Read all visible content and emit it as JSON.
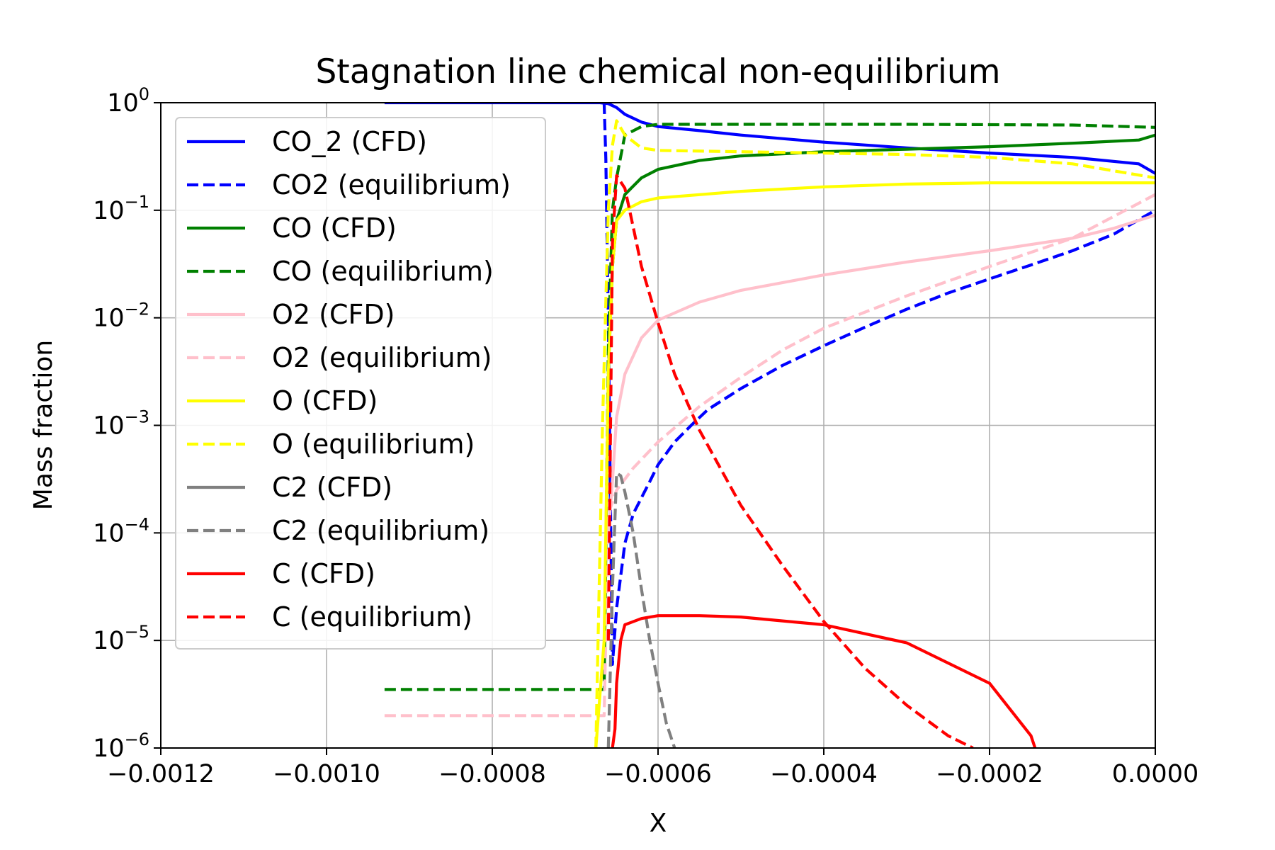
{
  "chart_data": {
    "type": "line",
    "title": "Stagnation line chemical non-equilibrium",
    "xlabel": "X",
    "ylabel": "Mass fraction",
    "xlim": [
      -0.0012,
      0.0
    ],
    "ylim": [
      1e-06,
      1.0
    ],
    "yscale": "log",
    "grid": true,
    "legend_position": "upper-left",
    "x_tick_labels": [
      "−0.0012",
      "−0.0010",
      "−0.0008",
      "−0.0006",
      "−0.0004",
      "−0.0002",
      "0.0000"
    ],
    "x_tick_values": [
      -0.0012,
      -0.001,
      -0.0008,
      -0.0006,
      -0.0004,
      -0.0002,
      0.0
    ],
    "y_ticks": [
      {
        "value": 1,
        "base": "10",
        "exp": "0"
      },
      {
        "value": 0.1,
        "base": "10",
        "exp": "−1"
      },
      {
        "value": 0.01,
        "base": "10",
        "exp": "−2"
      },
      {
        "value": 0.001,
        "base": "10",
        "exp": "−3"
      },
      {
        "value": 0.0001,
        "base": "10",
        "exp": "−4"
      },
      {
        "value": 1e-05,
        "base": "10",
        "exp": "−5"
      },
      {
        "value": 1e-06,
        "base": "10",
        "exp": "−6"
      }
    ],
    "series": [
      {
        "name": "CO_2 (CFD)",
        "color": "#0000ff",
        "dashed": false,
        "x": [
          -0.00093,
          -0.00067,
          -0.00066,
          -0.00065,
          -0.00064,
          -0.00062,
          -0.0006,
          -0.00055,
          -0.0005,
          -0.0004,
          -0.0003,
          -0.0002,
          -0.0001,
          -2e-05,
          0.0
        ],
        "y": [
          1.0,
          1.0,
          0.98,
          0.9,
          0.78,
          0.66,
          0.6,
          0.55,
          0.5,
          0.43,
          0.38,
          0.34,
          0.31,
          0.27,
          0.22
        ]
      },
      {
        "name": "CO2 (equilibrium)",
        "color": "#0000ff",
        "dashed": true,
        "x": [
          -0.000665,
          -0.000663,
          -0.00066,
          -0.000657,
          -0.000655,
          -0.00065,
          -0.00064,
          -0.00063,
          -0.00061,
          -0.0006,
          -0.00058,
          -0.00056,
          -0.00054,
          -0.0005,
          -0.00045,
          -0.0004,
          -0.00035,
          -0.0003,
          -0.00025,
          -0.0002,
          -0.00015,
          -0.0001,
          -5e-05,
          0.0
        ],
        "y": [
          1.0,
          0.3,
          0.01,
          0.0001,
          6e-06,
          2e-05,
          8e-05,
          0.00015,
          0.0003,
          0.00043,
          0.0007,
          0.001,
          0.0014,
          0.0022,
          0.0036,
          0.0055,
          0.0082,
          0.012,
          0.017,
          0.023,
          0.031,
          0.042,
          0.06,
          0.1
        ]
      },
      {
        "name": "CO (CFD)",
        "color": "#008000",
        "dashed": false,
        "x": [
          -0.00066,
          -0.000655,
          -0.00065,
          -0.00064,
          -0.00062,
          -0.0006,
          -0.00055,
          -0.0005,
          -0.0004,
          -0.0003,
          -0.0002,
          -0.0001,
          -2e-05,
          0.0
        ],
        "y": [
          0.003,
          0.03,
          0.08,
          0.14,
          0.2,
          0.24,
          0.29,
          0.32,
          0.35,
          0.37,
          0.39,
          0.42,
          0.45,
          0.5
        ]
      },
      {
        "name": "CO (equilibrium)",
        "color": "#008000",
        "dashed": true,
        "x": [
          -0.00093,
          -0.000675,
          -0.000665,
          -0.00066,
          -0.000655,
          -0.00065,
          -0.00064,
          -0.00062,
          -0.0006,
          -0.0005,
          -0.0003,
          -0.0001,
          0.0
        ],
        "y": [
          3.5e-06,
          3.5e-06,
          3.5e-06,
          0.005,
          0.1,
          0.2,
          0.5,
          0.6,
          0.63,
          0.63,
          0.63,
          0.62,
          0.59
        ]
      },
      {
        "name": "O2 (CFD)",
        "color": "#ffc0cb",
        "dashed": false,
        "x": [
          -0.00066,
          -0.000655,
          -0.00065,
          -0.00064,
          -0.00062,
          -0.0006,
          -0.00055,
          -0.0005,
          -0.0004,
          -0.0003,
          -0.0002,
          -0.0001,
          -5e-05,
          0.0
        ],
        "y": [
          0.0001,
          0.0003,
          0.0012,
          0.003,
          0.0065,
          0.0095,
          0.014,
          0.018,
          0.025,
          0.033,
          0.042,
          0.055,
          0.068,
          0.09
        ]
      },
      {
        "name": "O2 (equilibrium)",
        "color": "#ffc0cb",
        "dashed": true,
        "x": [
          -0.00093,
          -0.000675,
          -0.000665,
          -0.00066,
          -0.00065,
          -0.00063,
          -0.0006,
          -0.00055,
          -0.0005,
          -0.00045,
          -0.0004,
          -0.0003,
          -0.0002,
          -0.0001,
          0.0
        ],
        "y": [
          2e-06,
          2e-06,
          2e-06,
          0.00015,
          0.00025,
          0.0004,
          0.0007,
          0.0015,
          0.0028,
          0.005,
          0.008,
          0.016,
          0.03,
          0.055,
          0.14
        ]
      },
      {
        "name": "O (CFD)",
        "color": "#ffff00",
        "dashed": false,
        "x": [
          -0.000675,
          -0.000665,
          -0.00066,
          -0.000655,
          -0.00065,
          -0.00064,
          -0.00062,
          -0.0006,
          -0.0005,
          -0.0004,
          -0.0003,
          -0.0002,
          -0.0001,
          0.0
        ],
        "y": [
          1e-06,
          1e-05,
          0.003,
          0.03,
          0.08,
          0.1,
          0.12,
          0.13,
          0.15,
          0.165,
          0.175,
          0.18,
          0.18,
          0.18
        ]
      },
      {
        "name": "O (equilibrium)",
        "color": "#ffff00",
        "dashed": true,
        "x": [
          -0.000675,
          -0.000667,
          -0.00066,
          -0.000655,
          -0.00065,
          -0.00064,
          -0.00062,
          -0.0006,
          -0.0005,
          -0.0004,
          -0.0003,
          -0.0002,
          -0.0001,
          0.0
        ],
        "y": [
          1e-06,
          0.001,
          0.1,
          0.4,
          0.68,
          0.5,
          0.38,
          0.36,
          0.35,
          0.34,
          0.33,
          0.31,
          0.27,
          0.2
        ]
      },
      {
        "name": "C2 (CFD)",
        "color": "#808080",
        "dashed": false,
        "x": [],
        "y": []
      },
      {
        "name": "C2 (equilibrium)",
        "color": "#808080",
        "dashed": true,
        "x": [
          -0.00066,
          -0.000655,
          -0.00065,
          -0.000645,
          -0.00064,
          -0.00063,
          -0.00062,
          -0.00061,
          -0.0006,
          -0.00059,
          -0.00058
        ],
        "y": [
          1e-06,
          3e-05,
          0.00036,
          0.00034,
          0.00024,
          0.0001,
          3e-05,
          1e-05,
          4e-06,
          1.7e-06,
          1e-06
        ]
      },
      {
        "name": "C (CFD)",
        "color": "#ff0000",
        "dashed": false,
        "x": [
          -0.000655,
          -0.000652,
          -0.00065,
          -0.000645,
          -0.00064,
          -0.00062,
          -0.0006,
          -0.00055,
          -0.0005,
          -0.0004,
          -0.0003,
          -0.0002,
          -0.00015,
          -0.000145
        ],
        "y": [
          1e-06,
          1.5e-06,
          4e-06,
          1e-05,
          1.4e-05,
          1.6e-05,
          1.7e-05,
          1.7e-05,
          1.65e-05,
          1.4e-05,
          9.5e-06,
          4e-06,
          1.3e-06,
          1e-06
        ]
      },
      {
        "name": "C (equilibrium)",
        "color": "#ff0000",
        "dashed": true,
        "x": [
          -0.00066,
          -0.000655,
          -0.00065,
          -0.00064,
          -0.00063,
          -0.00062,
          -0.0006,
          -0.00058,
          -0.00055,
          -0.0005,
          -0.00045,
          -0.0004,
          -0.00035,
          -0.0003,
          -0.00025,
          -0.00022
        ],
        "y": [
          1e-05,
          0.05,
          0.21,
          0.16,
          0.07,
          0.03,
          0.009,
          0.003,
          0.0009,
          0.00018,
          5e-05,
          1.5e-05,
          5.5e-06,
          2.5e-06,
          1.3e-06,
          1e-06
        ]
      }
    ]
  }
}
